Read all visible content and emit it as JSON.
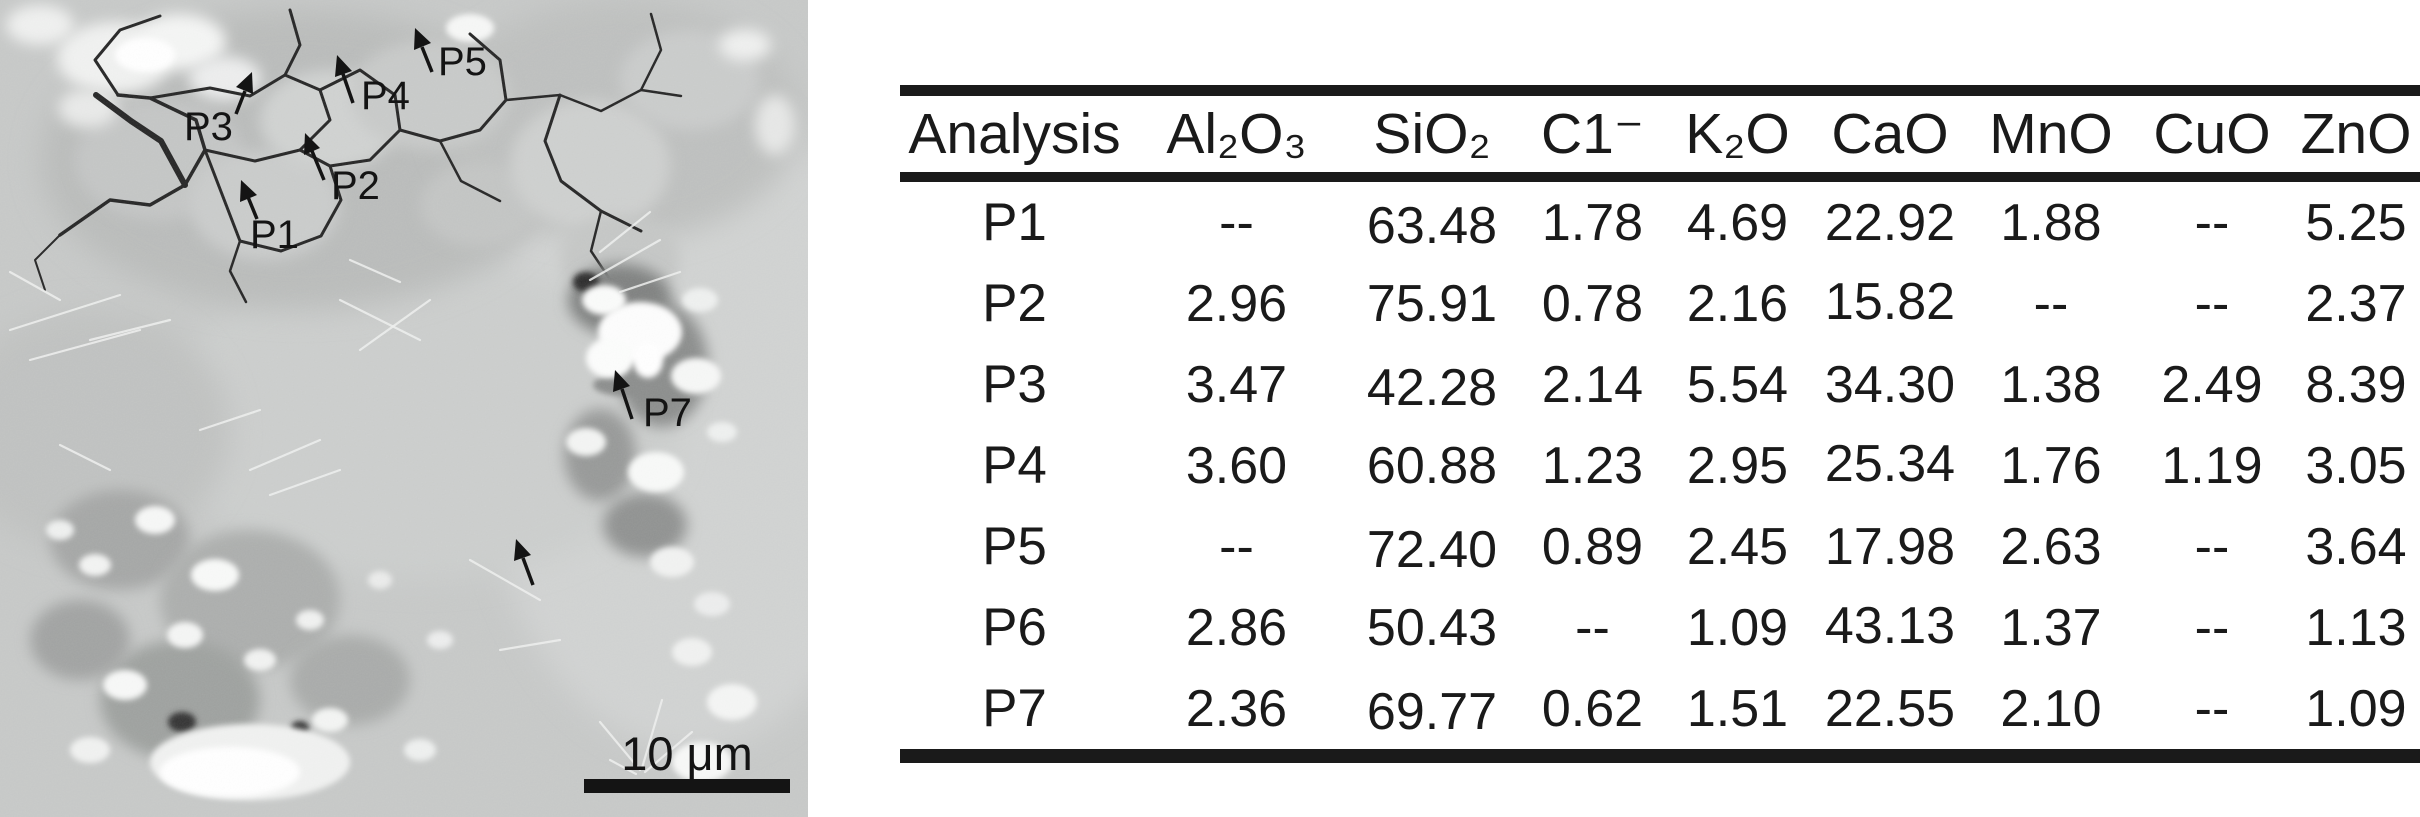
{
  "figure": {
    "micrograph": {
      "points": [
        {
          "label": "P1"
        },
        {
          "label": "P2"
        },
        {
          "label": "P3"
        },
        {
          "label": "P4"
        },
        {
          "label": "P5"
        },
        {
          "label": "P7"
        }
      ],
      "scale_bar_label": "10 μm"
    },
    "table": {
      "columns": [
        "Analysis",
        "Al₂O₃",
        "SiO₂",
        "C1⁻",
        "K₂O",
        "CaO",
        "MnO",
        "CuO",
        "ZnO"
      ],
      "rows": [
        {
          "analysis": "P1",
          "values": [
            "--",
            "63.48",
            "1.78",
            "4.69",
            "22.92",
            "1.88",
            "--",
            "5.25"
          ]
        },
        {
          "analysis": "P2",
          "values": [
            "2.96",
            "75.91",
            "0.78",
            "2.16",
            "15.82",
            "--",
            "--",
            "2.37"
          ]
        },
        {
          "analysis": "P3",
          "values": [
            "3.47",
            "42.28",
            "2.14",
            "5.54",
            "34.30",
            "1.38",
            "2.49",
            "8.39"
          ]
        },
        {
          "analysis": "P4",
          "values": [
            "3.60",
            "60.88",
            "1.23",
            "2.95",
            "25.34",
            "1.76",
            "1.19",
            "3.05"
          ]
        },
        {
          "analysis": "P5",
          "values": [
            "--",
            "72.40",
            "0.89",
            "2.45",
            "17.98",
            "2.63",
            "--",
            "3.64"
          ]
        },
        {
          "analysis": "P6",
          "values": [
            "2.86",
            "50.43",
            "--",
            "1.09",
            "43.13",
            "1.37",
            "--",
            "1.13"
          ]
        },
        {
          "analysis": "P7",
          "values": [
            "2.36",
            "69.77",
            "0.62",
            "1.51",
            "22.55",
            "2.10",
            "--",
            "1.09"
          ]
        }
      ]
    },
    "colors": {
      "ink": "#1a1a1a",
      "sem_background": "#c6c8c7"
    }
  }
}
